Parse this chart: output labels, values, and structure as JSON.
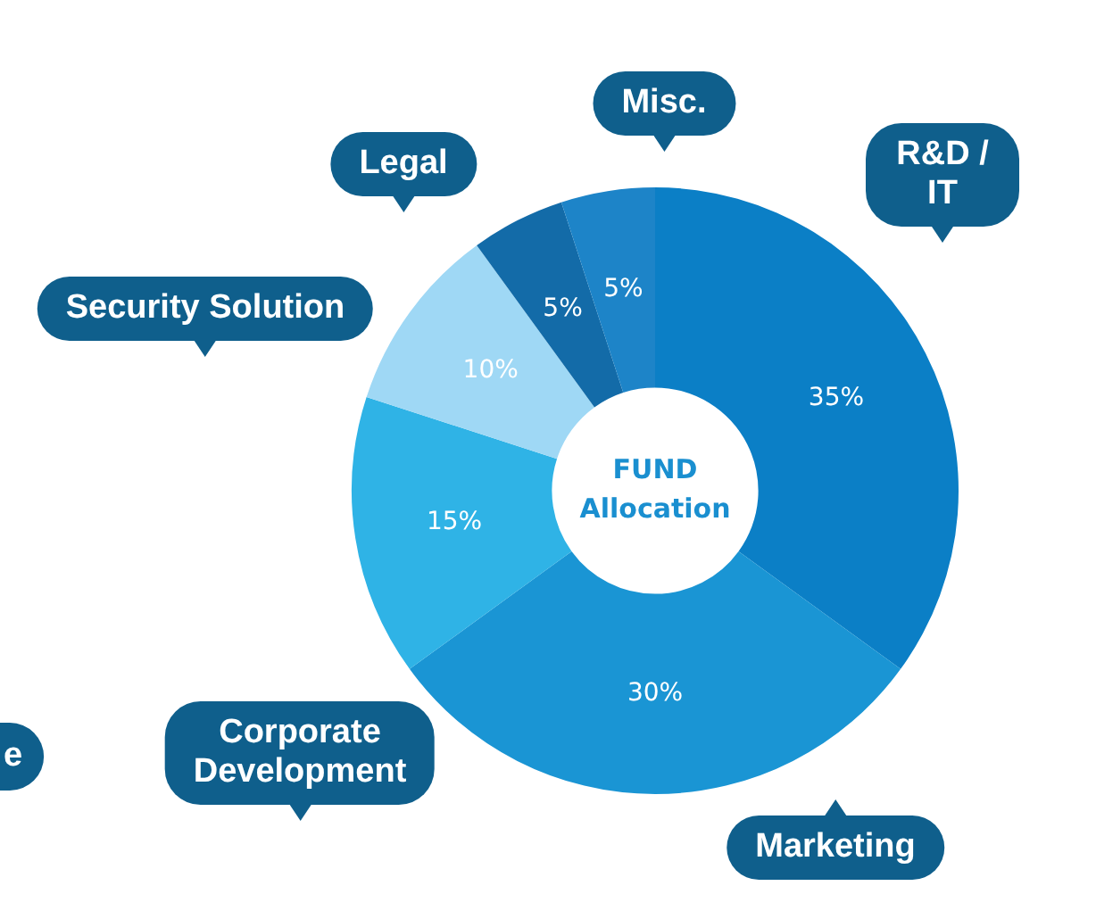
{
  "chart_data": {
    "type": "donut",
    "title": "FUND Allocation",
    "categories": [
      "R&D / IT",
      "Marketing",
      "Corporate Development",
      "Security Solution",
      "Legal",
      "Misc."
    ],
    "values": [
      35,
      30,
      15,
      10,
      5,
      5
    ],
    "colors": [
      "#0b7fc6",
      "#1a95d4",
      "#2fb3e6",
      "#9fd8f5",
      "#136ba8",
      "#1d84c8"
    ],
    "value_labels": [
      "35%",
      "30%",
      "15%",
      "10%",
      "5%",
      "5%"
    ],
    "annotations": [
      "e"
    ],
    "legend": false
  }
}
